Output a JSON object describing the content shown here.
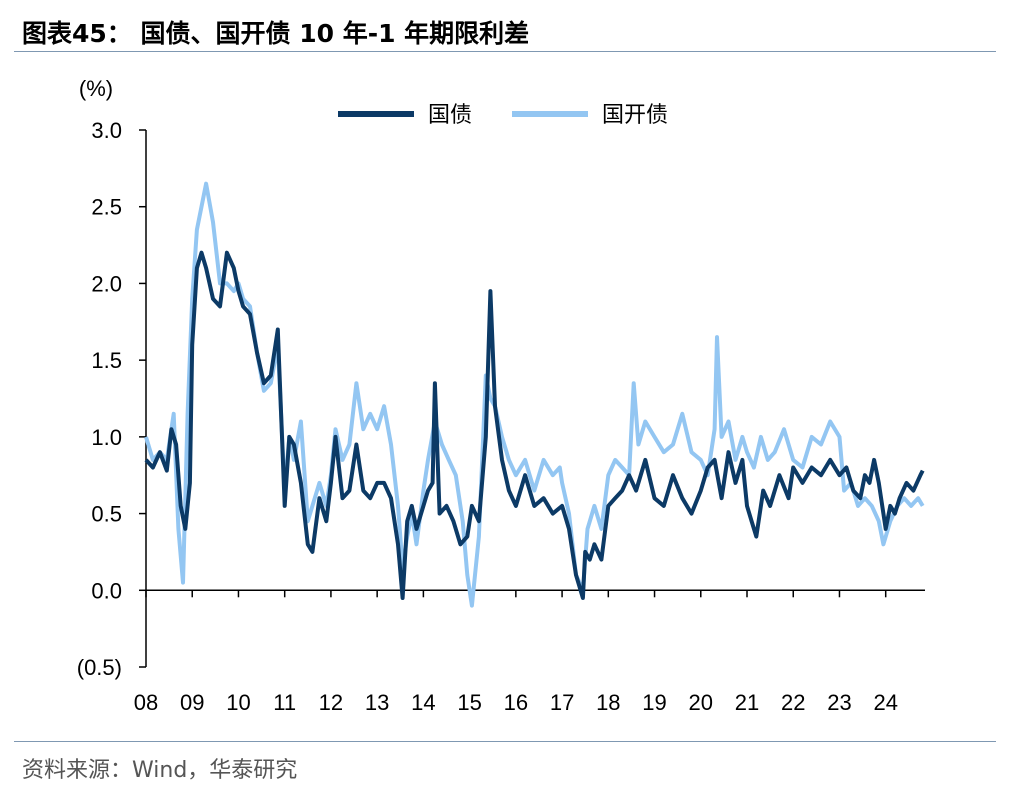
{
  "figure": {
    "title": "图表45：  国债、国开债 10 年-1 年期限利差",
    "source": "资料来源：Wind，华泰研究"
  },
  "colors": {
    "series1": "#0c3a66",
    "series2": "#93c6f2",
    "axis": "#000000"
  },
  "chart_data": {
    "type": "line",
    "ylabel": "(%)",
    "ylim": [
      -0.5,
      3.0
    ],
    "yticks": [
      "(0.5)",
      "0.0",
      "0.5",
      "1.0",
      "1.5",
      "2.0",
      "2.5",
      "3.0"
    ],
    "ytick_values": [
      -0.5,
      0.0,
      0.5,
      1.0,
      1.5,
      2.0,
      2.5,
      3.0
    ],
    "xlim": [
      2008.0,
      2024.85
    ],
    "xticks": [
      "08",
      "09",
      "10",
      "11",
      "12",
      "13",
      "14",
      "15",
      "16",
      "17",
      "18",
      "19",
      "20",
      "21",
      "22",
      "23",
      "24"
    ],
    "legend": {
      "position": "top-center",
      "entries": [
        "国债",
        "国开债"
      ]
    },
    "grid": false,
    "series": [
      {
        "name": "国债",
        "x": [
          2008.0,
          2008.15,
          2008.3,
          2008.45,
          2008.55,
          2008.65,
          2008.75,
          2008.85,
          2008.95,
          2009.0,
          2009.1,
          2009.2,
          2009.3,
          2009.45,
          2009.6,
          2009.75,
          2009.9,
          2010.0,
          2010.1,
          2010.25,
          2010.4,
          2010.55,
          2010.7,
          2010.85,
          2011.0,
          2011.1,
          2011.2,
          2011.35,
          2011.5,
          2011.6,
          2011.75,
          2011.9,
          2012.0,
          2012.1,
          2012.25,
          2012.4,
          2012.55,
          2012.7,
          2012.85,
          2013.0,
          2013.15,
          2013.3,
          2013.45,
          2013.55,
          2013.65,
          2013.75,
          2013.85,
          2014.0,
          2014.1,
          2014.2,
          2014.25,
          2014.35,
          2014.5,
          2014.65,
          2014.8,
          2014.95,
          2015.05,
          2015.2,
          2015.35,
          2015.45,
          2015.55,
          2015.7,
          2015.85,
          2016.0,
          2016.2,
          2016.4,
          2016.6,
          2016.8,
          2017.0,
          2017.15,
          2017.3,
          2017.45,
          2017.5,
          2017.6,
          2017.7,
          2017.85,
          2018.0,
          2018.15,
          2018.3,
          2018.45,
          2018.6,
          2018.8,
          2019.0,
          2019.2,
          2019.4,
          2019.6,
          2019.8,
          2020.0,
          2020.15,
          2020.3,
          2020.45,
          2020.6,
          2020.75,
          2020.9,
          2021.0,
          2021.1,
          2021.2,
          2021.35,
          2021.5,
          2021.7,
          2021.9,
          2022.0,
          2022.2,
          2022.4,
          2022.6,
          2022.8,
          2023.0,
          2023.15,
          2023.3,
          2023.45,
          2023.55,
          2023.65,
          2023.75,
          2023.85,
          2024.0,
          2024.1,
          2024.2,
          2024.3,
          2024.45,
          2024.6,
          2024.75,
          2024.8
        ],
        "values": [
          0.85,
          0.8,
          0.9,
          0.78,
          1.05,
          0.95,
          0.55,
          0.4,
          0.7,
          1.6,
          2.1,
          2.2,
          2.1,
          1.9,
          1.85,
          2.2,
          2.1,
          1.95,
          1.85,
          1.8,
          1.55,
          1.35,
          1.4,
          1.7,
          0.55,
          1.0,
          0.95,
          0.7,
          0.3,
          0.25,
          0.6,
          0.45,
          0.7,
          1.0,
          0.6,
          0.65,
          0.95,
          0.65,
          0.6,
          0.7,
          0.7,
          0.6,
          0.3,
          -0.05,
          0.45,
          0.55,
          0.4,
          0.55,
          0.65,
          0.7,
          1.35,
          0.5,
          0.55,
          0.45,
          0.3,
          0.35,
          0.55,
          0.45,
          1.0,
          1.95,
          1.2,
          0.85,
          0.65,
          0.55,
          0.75,
          0.55,
          0.6,
          0.5,
          0.55,
          0.4,
          0.1,
          -0.05,
          0.25,
          0.2,
          0.3,
          0.2,
          0.55,
          0.6,
          0.65,
          0.75,
          0.65,
          0.85,
          0.6,
          0.55,
          0.75,
          0.6,
          0.5,
          0.65,
          0.8,
          0.85,
          0.6,
          0.9,
          0.7,
          0.85,
          0.55,
          0.45,
          0.35,
          0.65,
          0.55,
          0.75,
          0.6,
          0.8,
          0.7,
          0.8,
          0.75,
          0.85,
          0.75,
          0.8,
          0.65,
          0.6,
          0.75,
          0.7,
          0.85,
          0.7,
          0.4,
          0.55,
          0.5,
          0.6,
          0.7,
          0.65,
          0.75,
          0.78
        ]
      },
      {
        "name": "国开债",
        "x": [
          2008.0,
          2008.15,
          2008.3,
          2008.45,
          2008.6,
          2008.7,
          2008.8,
          2008.9,
          2009.0,
          2009.1,
          2009.2,
          2009.3,
          2009.45,
          2009.6,
          2009.75,
          2009.9,
          2010.0,
          2010.1,
          2010.25,
          2010.4,
          2010.55,
          2010.7,
          2010.85,
          2011.0,
          2011.1,
          2011.2,
          2011.35,
          2011.5,
          2011.6,
          2011.75,
          2011.9,
          2012.0,
          2012.1,
          2012.25,
          2012.4,
          2012.55,
          2012.7,
          2012.85,
          2013.0,
          2013.15,
          2013.3,
          2013.45,
          2013.55,
          2013.65,
          2013.75,
          2013.85,
          2014.0,
          2014.1,
          2014.25,
          2014.4,
          2014.55,
          2014.7,
          2014.85,
          2014.95,
          2015.05,
          2015.2,
          2015.35,
          2015.45,
          2015.55,
          2015.7,
          2015.85,
          2016.0,
          2016.2,
          2016.4,
          2016.6,
          2016.8,
          2016.95,
          2017.0,
          2017.15,
          2017.3,
          2017.45,
          2017.55,
          2017.7,
          2017.85,
          2018.0,
          2018.15,
          2018.3,
          2018.45,
          2018.55,
          2018.65,
          2018.8,
          2019.0,
          2019.2,
          2019.4,
          2019.6,
          2019.8,
          2020.0,
          2020.15,
          2020.3,
          2020.35,
          2020.45,
          2020.6,
          2020.75,
          2020.9,
          2021.0,
          2021.15,
          2021.3,
          2021.45,
          2021.6,
          2021.8,
          2022.0,
          2022.2,
          2022.4,
          2022.6,
          2022.8,
          2023.0,
          2023.1,
          2023.25,
          2023.4,
          2023.55,
          2023.7,
          2023.85,
          2023.95,
          2024.1,
          2024.25,
          2024.4,
          2024.55,
          2024.7,
          2024.8
        ],
        "values": [
          1.0,
          0.85,
          0.9,
          0.85,
          1.15,
          0.4,
          0.05,
          1.15,
          1.9,
          2.35,
          2.5,
          2.65,
          2.4,
          2.0,
          2.0,
          1.95,
          2.0,
          1.9,
          1.85,
          1.55,
          1.3,
          1.35,
          1.6,
          0.65,
          1.0,
          0.85,
          1.1,
          0.45,
          0.55,
          0.7,
          0.55,
          0.75,
          1.05,
          0.85,
          0.95,
          1.35,
          1.05,
          1.15,
          1.05,
          1.2,
          0.95,
          0.55,
          0.15,
          0.35,
          0.5,
          0.3,
          0.65,
          0.85,
          1.1,
          0.95,
          0.85,
          0.75,
          0.45,
          0.1,
          -0.1,
          0.35,
          1.4,
          1.25,
          1.2,
          1.0,
          0.85,
          0.75,
          0.85,
          0.65,
          0.85,
          0.75,
          0.8,
          0.7,
          0.5,
          0.1,
          0.0,
          0.4,
          0.55,
          0.4,
          0.75,
          0.85,
          0.8,
          0.75,
          1.35,
          0.95,
          1.1,
          1.0,
          0.9,
          0.95,
          1.15,
          0.9,
          0.85,
          0.75,
          1.05,
          1.65,
          1.0,
          1.1,
          0.85,
          1.0,
          0.9,
          0.8,
          1.0,
          0.85,
          0.9,
          1.05,
          0.85,
          0.8,
          1.0,
          0.95,
          1.1,
          1.0,
          0.65,
          0.7,
          0.55,
          0.6,
          0.55,
          0.45,
          0.3,
          0.45,
          0.55,
          0.6,
          0.55,
          0.6,
          0.55
        ]
      }
    ]
  }
}
